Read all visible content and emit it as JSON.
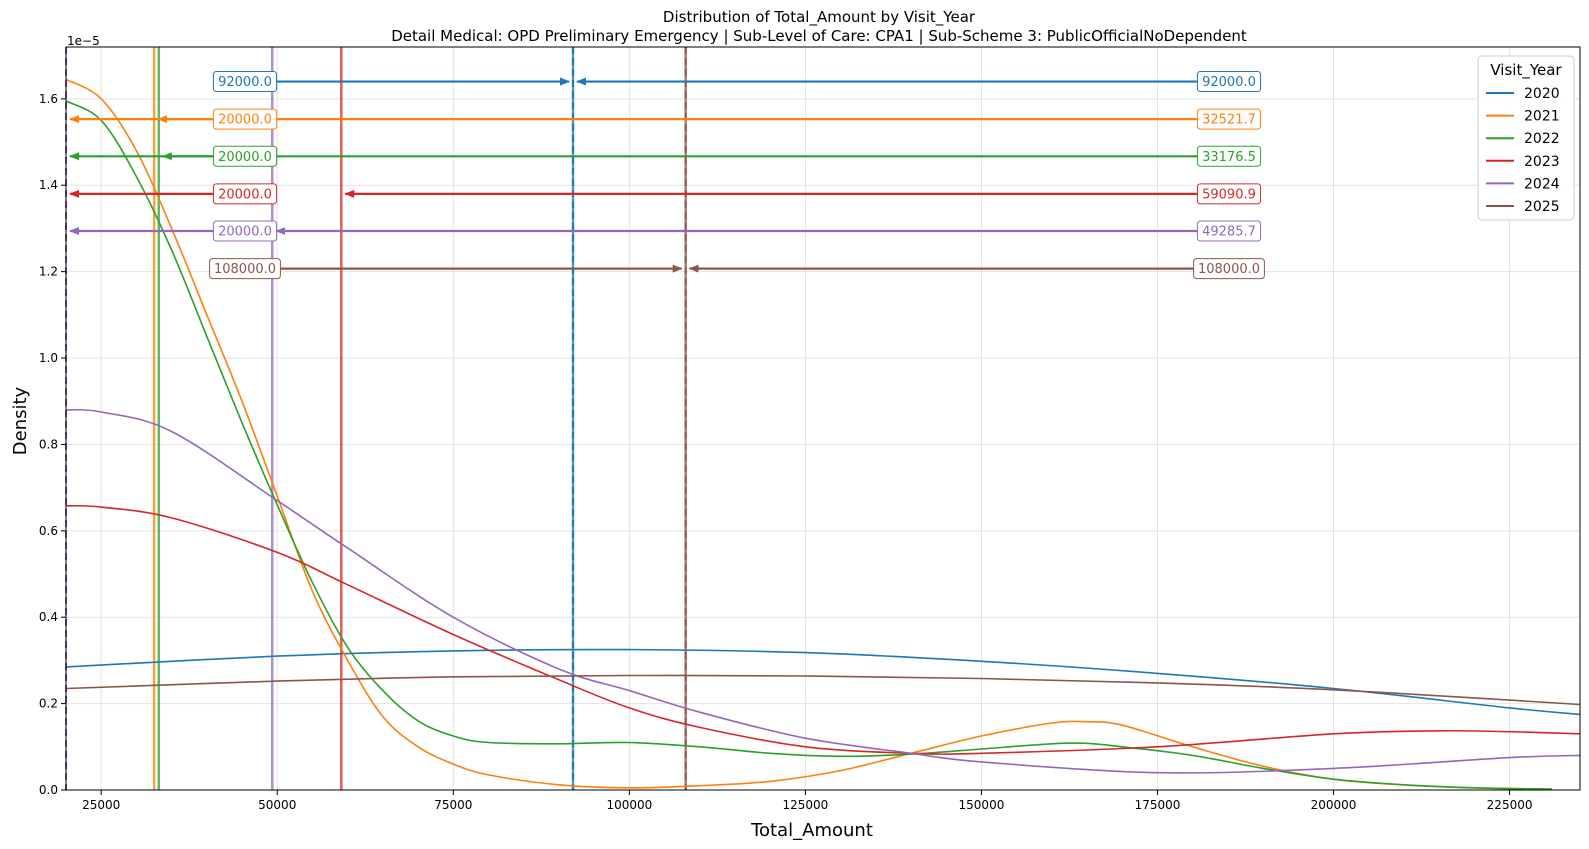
{
  "chart_data": {
    "type": "line",
    "title": "Distribution of Total_Amount by Visit_Year",
    "subtitle": "Detail Medical: OPD Preliminary Emergency | Sub-Level of Care: CPA1 | Sub-Scheme 3: PublicOfficialNoDependent",
    "xlabel": "Total_Amount",
    "ylabel": "Density",
    "y_scale_label": "1e−5",
    "xlim": [
      20000,
      235000
    ],
    "ylim": [
      0,
      1.72
    ],
    "xticks": [
      25000,
      50000,
      75000,
      100000,
      125000,
      150000,
      175000,
      200000,
      225000
    ],
    "yticks": [
      0.0,
      0.2,
      0.4,
      0.6,
      0.8,
      1.0,
      1.2,
      1.4,
      1.6
    ],
    "grid": true,
    "legend": {
      "title": "Visit_Year",
      "placement": "top-right"
    },
    "series": [
      {
        "name": "2020",
        "color": "#1f77b4",
        "x": [
          20000,
          50000,
          75000,
          100000,
          125000,
          150000,
          175000,
          200000,
          225000,
          235000
        ],
        "y": [
          0.285,
          0.31,
          0.322,
          0.325,
          0.318,
          0.298,
          0.27,
          0.235,
          0.19,
          0.175
        ],
        "median": 92000.0,
        "mean": 92000.0,
        "median_label": "92000.0",
        "mean_label": "92000.0",
        "anno_y": 1.64
      },
      {
        "name": "2021",
        "color": "#ff7f0e",
        "x": [
          20000,
          25000,
          30000,
          35000,
          40000,
          45000,
          50000,
          55000,
          60000,
          65000,
          70000,
          75000,
          80000,
          90000,
          100000,
          110000,
          120000,
          130000,
          140000,
          150000,
          160000,
          165000,
          170000,
          180000,
          190000,
          200000,
          210000,
          220000,
          231000
        ],
        "y": [
          1.645,
          1.6,
          1.48,
          1.3,
          1.1,
          0.9,
          0.68,
          0.46,
          0.3,
          0.17,
          0.1,
          0.06,
          0.035,
          0.012,
          0.005,
          0.01,
          0.02,
          0.045,
          0.085,
          0.125,
          0.155,
          0.158,
          0.15,
          0.1,
          0.055,
          0.025,
          0.012,
          0.005,
          0.002
        ],
        "median": 20000.0,
        "mean": 32521.7,
        "median_label": "20000.0",
        "mean_label": "32521.7",
        "anno_y": 1.553
      },
      {
        "name": "2022",
        "color": "#2ca02c",
        "x": [
          20000,
          25000,
          30000,
          35000,
          40000,
          45000,
          50000,
          55000,
          60000,
          65000,
          70000,
          75000,
          80000,
          90000,
          100000,
          110000,
          120000,
          130000,
          140000,
          150000,
          160000,
          165000,
          170000,
          180000,
          190000,
          200000,
          210000,
          220000,
          231000
        ],
        "y": [
          1.595,
          1.55,
          1.42,
          1.25,
          1.05,
          0.85,
          0.66,
          0.48,
          0.33,
          0.23,
          0.16,
          0.125,
          0.11,
          0.107,
          0.11,
          0.1,
          0.085,
          0.078,
          0.083,
          0.095,
          0.107,
          0.108,
          0.1,
          0.08,
          0.05,
          0.025,
          0.012,
          0.005,
          0.002
        ],
        "median": 20000.0,
        "mean": 33176.5,
        "median_label": "20000.0",
        "mean_label": "33176.5",
        "anno_y": 1.467
      },
      {
        "name": "2023",
        "color": "#d62728",
        "x": [
          20000,
          25000,
          35000,
          50000,
          60000,
          75000,
          90000,
          100000,
          110000,
          125000,
          140000,
          150000,
          175000,
          200000,
          215000,
          225000,
          235000
        ],
        "y": [
          0.658,
          0.655,
          0.63,
          0.55,
          0.475,
          0.36,
          0.255,
          0.19,
          0.145,
          0.1,
          0.085,
          0.085,
          0.1,
          0.13,
          0.137,
          0.135,
          0.13
        ],
        "median": 20000.0,
        "mean": 59090.9,
        "median_label": "20000.0",
        "mean_label": "59090.9",
        "anno_y": 1.38
      },
      {
        "name": "2024",
        "color": "#9467bd",
        "x": [
          20000,
          25000,
          35000,
          50000,
          60000,
          75000,
          90000,
          100000,
          110000,
          125000,
          140000,
          150000,
          175000,
          200000,
          225000,
          235000
        ],
        "y": [
          0.88,
          0.875,
          0.83,
          0.67,
          0.56,
          0.4,
          0.28,
          0.23,
          0.18,
          0.12,
          0.085,
          0.065,
          0.04,
          0.05,
          0.075,
          0.08
        ],
        "median": 20000.0,
        "mean": 49285.7,
        "median_label": "20000.0",
        "mean_label": "49285.7",
        "anno_y": 1.294
      },
      {
        "name": "2025",
        "color": "#8c564b",
        "x": [
          20000,
          50000,
          75000,
          100000,
          125000,
          150000,
          175000,
          200000,
          225000,
          235000
        ],
        "y": [
          0.235,
          0.252,
          0.262,
          0.265,
          0.264,
          0.258,
          0.248,
          0.232,
          0.208,
          0.198
        ],
        "median": 108000.0,
        "mean": 108000.0,
        "median_label": "108000.0",
        "mean_label": "108000.0",
        "anno_y": 1.207
      }
    ]
  }
}
